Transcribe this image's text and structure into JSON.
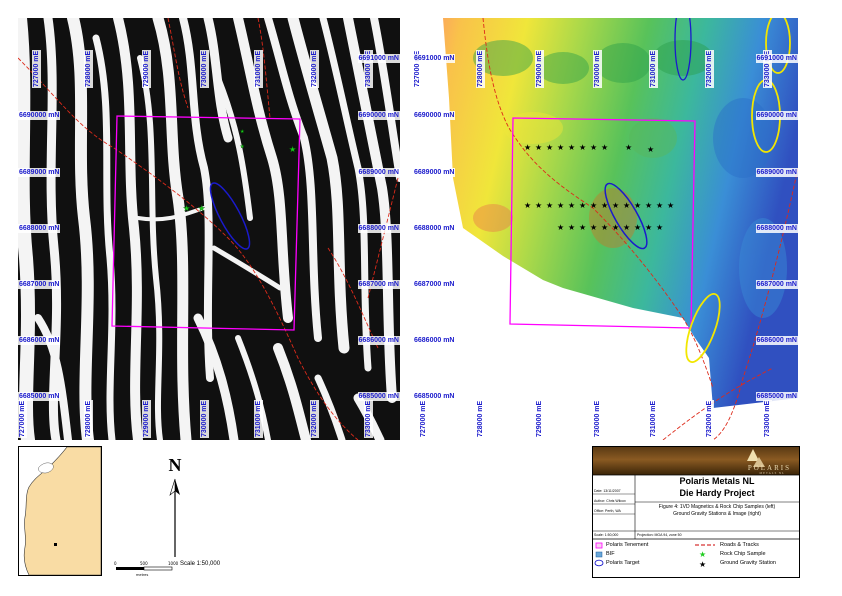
{
  "left_map": {
    "top_labels": [
      "727000 mE",
      "728000 mE",
      "729000 mE",
      "730000 mE",
      "731000 mE",
      "732000 mE",
      "733000 mE"
    ],
    "bottom_labels": [
      "727000 mE",
      "728000 mE",
      "729000 mE",
      "730000 mE",
      "731000 mE",
      "732000 mE",
      "733000 mE"
    ],
    "left_labels": [
      "6690000 mN",
      "6689000 mN",
      "6688000 mN",
      "6687000 mN",
      "6686000 mN",
      "6685000 mN"
    ],
    "right_labels": [
      "6691000 mN",
      "6690000 mN",
      "6689000 mN",
      "6688000 mN",
      "6687000 mN",
      "6686000 mN",
      "6685000 mN"
    ]
  },
  "right_map": {
    "top_labels": [
      "727000 mE",
      "728000 mE",
      "729000 mE",
      "730000 mE",
      "731000 mE",
      "732000 mE",
      "733000 mE"
    ],
    "bottom_labels": [
      "727000 mE",
      "728000 mE",
      "729000 mE",
      "730000 mE",
      "731000 mE",
      "732000 mE",
      "733000 mE"
    ],
    "left_labels": [
      "6691000 mN",
      "6690000 mN",
      "6689000 mN",
      "6688000 mN",
      "6687000 mN",
      "6686000 mN",
      "6685000 mN"
    ],
    "right_labels": [
      "6691000 mN",
      "6690000 mN",
      "6689000 mN",
      "6688000 mN",
      "6687000 mN",
      "6686000 mN",
      "6685000 mN"
    ]
  },
  "north_arrow": {
    "letter": "N"
  },
  "scale": {
    "ticks": [
      "0",
      "500",
      "1000"
    ],
    "unit": "metres",
    "text": "Scale 1:50,000"
  },
  "title_block": {
    "logo": "POLARIS",
    "logo_sub": "METALS NL",
    "company": "Polaris Metals NL",
    "project": "Die Hardy Project",
    "caption_line1": "Figure 4: 1VD Magnetics & Rock Chip Samples (left)",
    "caption_line2": "Ground Gravity Stations & Image (right)",
    "date": "Date: 13/11/2007",
    "author": "Author: Chris Wilcox",
    "office": "Office: Perth, WA",
    "scale": "Scale: 1:50,000",
    "projection": "Projection: MGA 94, zone 50"
  },
  "legend": [
    {
      "label": "Polaris Tenement",
      "symbol": "magenta-square"
    },
    {
      "label": "BIF",
      "symbol": "blue-square"
    },
    {
      "label": "Polaris Target",
      "symbol": "blue-ellipse"
    },
    {
      "label": "Roads & Tracks",
      "symbol": "red-dash-line"
    },
    {
      "label": "Rock Chip Sample",
      "symbol": "green-star"
    },
    {
      "label": "Ground Gravity Station",
      "symbol": "black-star"
    }
  ],
  "colors": {
    "grid_label": "#1a1acc",
    "tenement": "#ff00ff",
    "target": "#1a1acc",
    "road": "#cc0000",
    "anomaly": "#f2e600"
  }
}
